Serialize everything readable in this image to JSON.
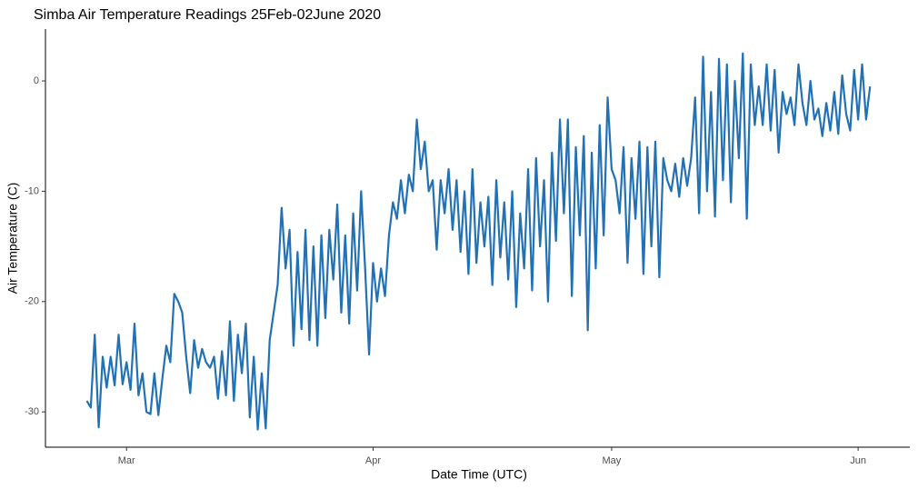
{
  "chart_data": {
    "type": "line",
    "title": "Simba Air Temperature Readings 25Feb-02June 2020",
    "xlabel": "Date Time (UTC)",
    "ylabel": "Air Temperature (C)",
    "color": "#2171b5",
    "xlim": [
      50.8,
      159.5
    ],
    "ylim": [
      -33.2,
      4.7
    ],
    "xticks": [
      {
        "value": 61,
        "label": "Mar"
      },
      {
        "value": 92,
        "label": "Apr"
      },
      {
        "value": 122,
        "label": "May"
      },
      {
        "value": 153,
        "label": "Jun"
      }
    ],
    "yticks": [
      0,
      -10,
      -20,
      -30
    ],
    "grid": false,
    "x": [
      56,
      56.5,
      57,
      57.5,
      58,
      58.5,
      59,
      59.5,
      60,
      60.5,
      61,
      61.5,
      62,
      62.5,
      63,
      63.5,
      64,
      64.5,
      65,
      65.5,
      66,
      66.5,
      67,
      67.5,
      68,
      68.5,
      69,
      69.5,
      70,
      70.5,
      71,
      71.5,
      72,
      72.5,
      73,
      73.5,
      74,
      74.5,
      75,
      75.5,
      76,
      76.5,
      77,
      77.5,
      78,
      78.5,
      79,
      79.5,
      80,
      80.5,
      81,
      81.5,
      82,
      82.5,
      83,
      83.5,
      84,
      84.5,
      85,
      85.5,
      86,
      86.5,
      87,
      87.5,
      88,
      88.5,
      89,
      89.5,
      90,
      90.5,
      91,
      91.5,
      92,
      92.5,
      93,
      93.5,
      94,
      94.5,
      95,
      95.5,
      96,
      96.5,
      97,
      97.5,
      98,
      98.5,
      99,
      99.5,
      100,
      100.5,
      101,
      101.5,
      102,
      102.5,
      103,
      103.5,
      104,
      104.5,
      105,
      105.5,
      106,
      106.5,
      107,
      107.5,
      108,
      108.5,
      109,
      109.5,
      110,
      110.5,
      111,
      111.5,
      112,
      112.5,
      113,
      113.5,
      114,
      114.5,
      115,
      115.5,
      116,
      116.5,
      117,
      117.5,
      118,
      118.5,
      119,
      119.5,
      120,
      120.5,
      121,
      121.5,
      122,
      122.5,
      123,
      123.5,
      124,
      124.5,
      125,
      125.5,
      126,
      126.5,
      127,
      127.5,
      128,
      128.5,
      129,
      129.5,
      130,
      130.5,
      131,
      131.5,
      132,
      132.5,
      133,
      133.5,
      134,
      134.5,
      135,
      135.5,
      136,
      136.5,
      137,
      137.5,
      138,
      138.5,
      139,
      139.5,
      140,
      140.5,
      141,
      141.5,
      142,
      142.5,
      143,
      143.5,
      144,
      144.5,
      145,
      145.5,
      146,
      146.5,
      147,
      147.5,
      148,
      148.5,
      149,
      149.5,
      150,
      150.5,
      151,
      151.5,
      152,
      152.5,
      153,
      153.5,
      154,
      154.5
    ],
    "values": [
      -29,
      -29.6,
      -23,
      -31.4,
      -25,
      -27.8,
      -25,
      -27.6,
      -23,
      -27.5,
      -25.5,
      -28,
      -22,
      -28.5,
      -26.5,
      -30,
      -30.2,
      -26.5,
      -30.3,
      -27,
      -24,
      -25.5,
      -19.3,
      -20,
      -21,
      -25,
      -28.3,
      -23.5,
      -26,
      -24.3,
      -25.5,
      -26,
      -25,
      -28.8,
      -24.5,
      -28.5,
      -21.8,
      -29,
      -23,
      -26.5,
      -22,
      -30.5,
      -25,
      -31.6,
      -26.5,
      -31.5,
      -23.5,
      -21,
      -18.5,
      -11.5,
      -17,
      -13.5,
      -24,
      -15.5,
      -22.5,
      -13.5,
      -23.5,
      -15,
      -24,
      -14,
      -21.5,
      -13.5,
      -18,
      -11.2,
      -21,
      -14,
      -22,
      -12,
      -19,
      -10,
      -17,
      -24.8,
      -16.5,
      -20,
      -17,
      -19.5,
      -14,
      -11,
      -12.5,
      -9,
      -12,
      -8.5,
      -10,
      -3.5,
      -8,
      -5.5,
      -10,
      -9,
      -15.3,
      -9,
      -12,
      -8,
      -13.5,
      -9,
      -15.5,
      -10,
      -17.5,
      -8,
      -16.5,
      -11,
      -15,
      -10.5,
      -18.5,
      -9,
      -16,
      -11,
      -18,
      -10,
      -20.5,
      -12,
      -17,
      -8,
      -19,
      -7,
      -15,
      -9,
      -20,
      -6.5,
      -14.5,
      -3.5,
      -12,
      -3.5,
      -19.5,
      -6,
      -14,
      -5,
      -22.6,
      -6.5,
      -17,
      -4,
      -14,
      -1.5,
      -8,
      -9,
      -12,
      -6,
      -16.5,
      -7,
      -12.5,
      -5.5,
      -17.5,
      -6,
      -15,
      -5.5,
      -17.8,
      -7,
      -9,
      -10,
      -7.5,
      -10.5,
      -7,
      -9.5,
      -7,
      -1.5,
      -12,
      2.2,
      -10,
      -1,
      -12.3,
      2,
      -9,
      1.5,
      -11,
      0,
      -7,
      2.5,
      -12.5,
      1.5,
      -4,
      -0.5,
      -4,
      1.5,
      -4.5,
      1,
      -6.5,
      -1,
      -3,
      -1.5,
      -4,
      1.5,
      -2,
      -4,
      0,
      -3.5,
      -2.5,
      -5,
      -2,
      -4.5,
      -1,
      -4.8,
      0.5,
      -3,
      -4.5,
      1,
      -3.5,
      1.5,
      -3.5,
      -0.5
    ]
  }
}
